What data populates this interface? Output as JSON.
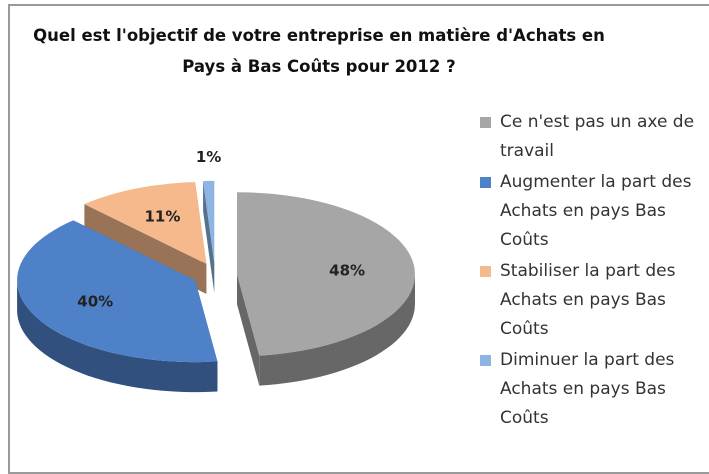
{
  "chart_data": {
    "type": "pie",
    "title": "Quel est l'objectif de votre entreprise en matière d'Achats en Pays à Bas Coûts pour 2012 ?",
    "categories": [
      "Ce n'est pas un axe de travail",
      "Augmenter la part des Achats en pays Bas Coûts",
      "Stabiliser la part des Achats en pays Bas Coûts",
      "Diminuer la part des Achats en pays Bas Coûts"
    ],
    "values": [
      48,
      40,
      11,
      1
    ],
    "value_labels": [
      "48%",
      "40%",
      "11%",
      "1%"
    ],
    "colors": [
      "#a6a6a6",
      "#4f81c9",
      "#f5b98c",
      "#8db4e2"
    ],
    "legend": "right"
  }
}
